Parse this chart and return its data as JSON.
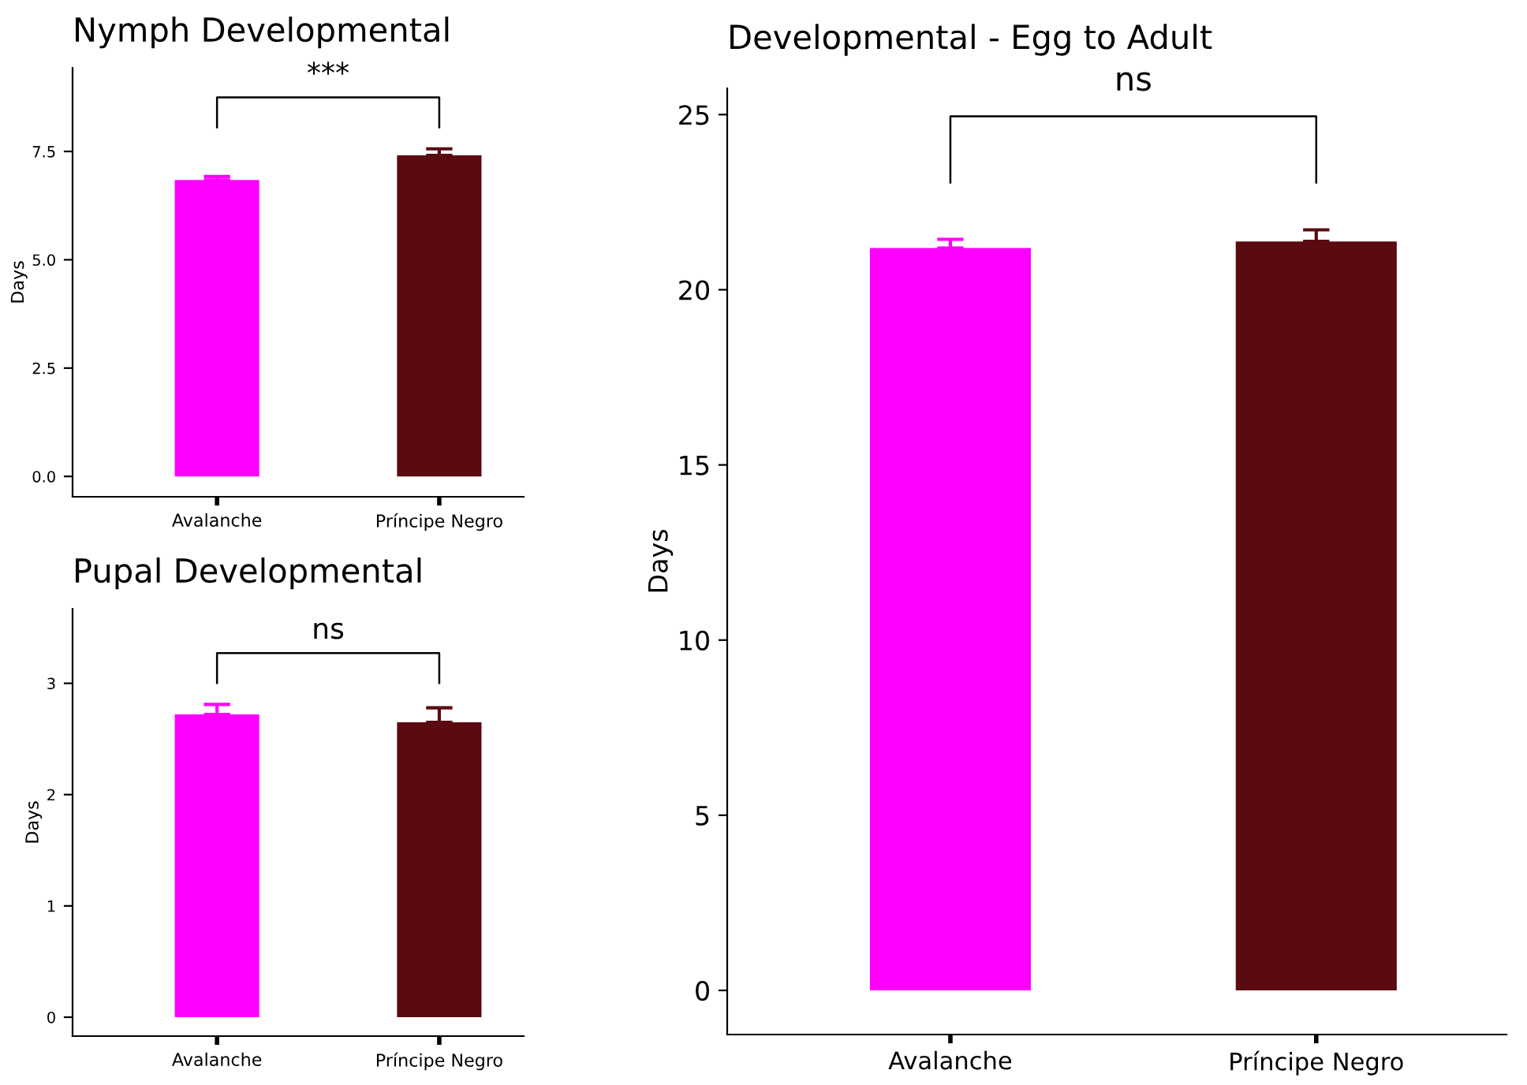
{
  "chart_data": [
    {
      "type": "bar",
      "title": "Nymph Developmental",
      "ylabel": "Days",
      "categories": [
        "Avalanche",
        "Príncipe Negro"
      ],
      "values": [
        6.84,
        7.41
      ],
      "colors": [
        "#ff00ff",
        "#5a0a10"
      ],
      "errors": [
        [
          6.84,
          6.92
        ],
        [
          7.41,
          7.56
        ]
      ],
      "ylim": [
        -0.47,
        9.43
      ],
      "yticks": [
        {
          "value": 0,
          "label": "0.0"
        },
        {
          "value": 2.5,
          "label": "2.5"
        },
        {
          "value": 5,
          "label": "5.0"
        },
        {
          "value": 7.5,
          "label": "7.5"
        }
      ],
      "annotations": [
        "***"
      ],
      "grid": false,
      "legend": false
    },
    {
      "type": "bar",
      "title": "Pupal Developmental",
      "ylabel": "Days",
      "categories": [
        "Avalanche",
        "Príncipe Negro"
      ],
      "values": [
        2.72,
        2.65
      ],
      "colors": [
        "#ff00ff",
        "#5a0a10"
      ],
      "errors": [
        [
          2.72,
          2.81
        ],
        [
          2.65,
          2.78
        ]
      ],
      "ylim": [
        -0.17,
        3.67
      ],
      "yticks": [
        0,
        1,
        2,
        3
      ],
      "annotations": [
        "ns"
      ],
      "grid": false,
      "legend": false
    },
    {
      "type": "bar",
      "title": "Developmental - Egg to Adult",
      "ylabel": "Days",
      "categories": [
        "Avalanche",
        "Príncipe Negro"
      ],
      "values": [
        21.19,
        21.38
      ],
      "colors": [
        "#ff00ff",
        "#5a0a10"
      ],
      "errors": [
        [
          21.19,
          21.44
        ],
        [
          21.38,
          21.71
        ]
      ],
      "ylim": [
        -1.26,
        25.75
      ],
      "yticks": [
        0,
        5,
        10,
        15,
        20,
        25
      ],
      "annotations": [
        "ns"
      ],
      "grid": false,
      "legend": false
    }
  ]
}
